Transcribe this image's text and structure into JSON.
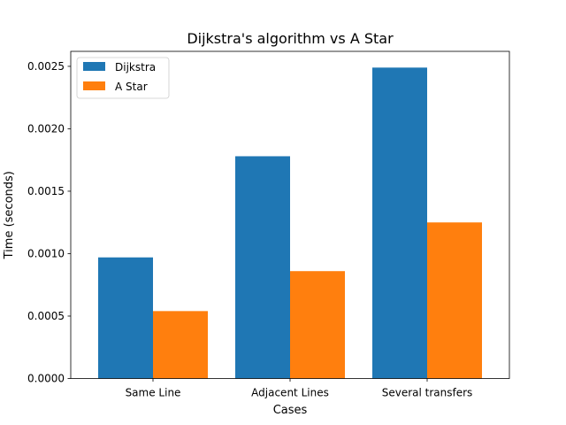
{
  "chart_data": {
    "type": "bar",
    "title": "Dijkstra's algorithm vs A Star",
    "xlabel": "Cases",
    "ylabel": "Time (seconds)",
    "categories": [
      "Same Line",
      "Adjacent Lines",
      "Several transfers"
    ],
    "series": [
      {
        "name": "Dijkstra",
        "color": "#1f77b4",
        "values": [
          0.00097,
          0.00178,
          0.00249
        ]
      },
      {
        "name": "A Star",
        "color": "#ff7f0e",
        "values": [
          0.00054,
          0.00086,
          0.00125
        ]
      }
    ],
    "ylim": [
      0,
      0.00262
    ],
    "yticks": [
      "0.0000",
      "0.0005",
      "0.0010",
      "0.0015",
      "0.0020",
      "0.0025"
    ],
    "ytick_values": [
      0,
      0.0005,
      0.001,
      0.0015,
      0.002,
      0.0025
    ],
    "grid": false,
    "legend": "upper-left"
  }
}
